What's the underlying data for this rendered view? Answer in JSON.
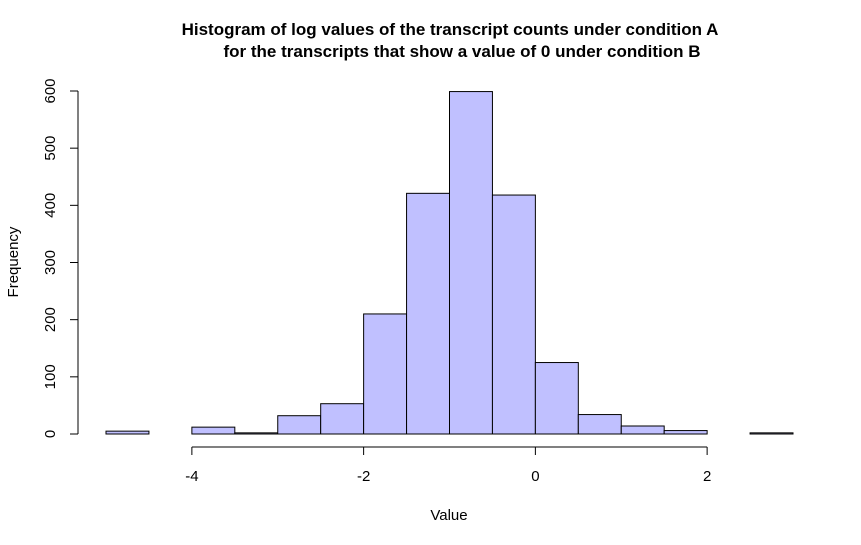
{
  "chart_data": {
    "type": "histogram",
    "title_line1": "Histogram of log values of the transcript counts under condition A",
    "title_line2": "for the transcripts that show a value of 0 under condition B",
    "xlabel": "Value",
    "ylabel": "Frequency",
    "bin_edges": [
      -5,
      -4.5,
      -4,
      -3.5,
      -3,
      -2.5,
      -2,
      -1.5,
      -1,
      -0.5,
      0,
      0.5,
      1,
      1.5,
      2,
      2.5,
      3
    ],
    "counts": [
      5,
      0,
      12,
      2,
      32,
      53,
      210,
      421,
      599,
      418,
      125,
      34,
      14,
      6,
      0,
      2
    ],
    "x_ticks": [
      -4,
      -2,
      0,
      2
    ],
    "x_tick_labels": [
      "-4",
      "-2",
      "0",
      "2"
    ],
    "y_ticks": [
      0,
      100,
      200,
      300,
      400,
      500,
      600
    ],
    "y_tick_labels": [
      "0",
      "100",
      "200",
      "300",
      "400",
      "500",
      "600"
    ],
    "xlim": [
      -5,
      3
    ],
    "ylim": [
      0,
      600
    ],
    "bar_fill": "#c0c0ff",
    "bar_stroke": "#000000",
    "grid": false,
    "legend": "none"
  }
}
